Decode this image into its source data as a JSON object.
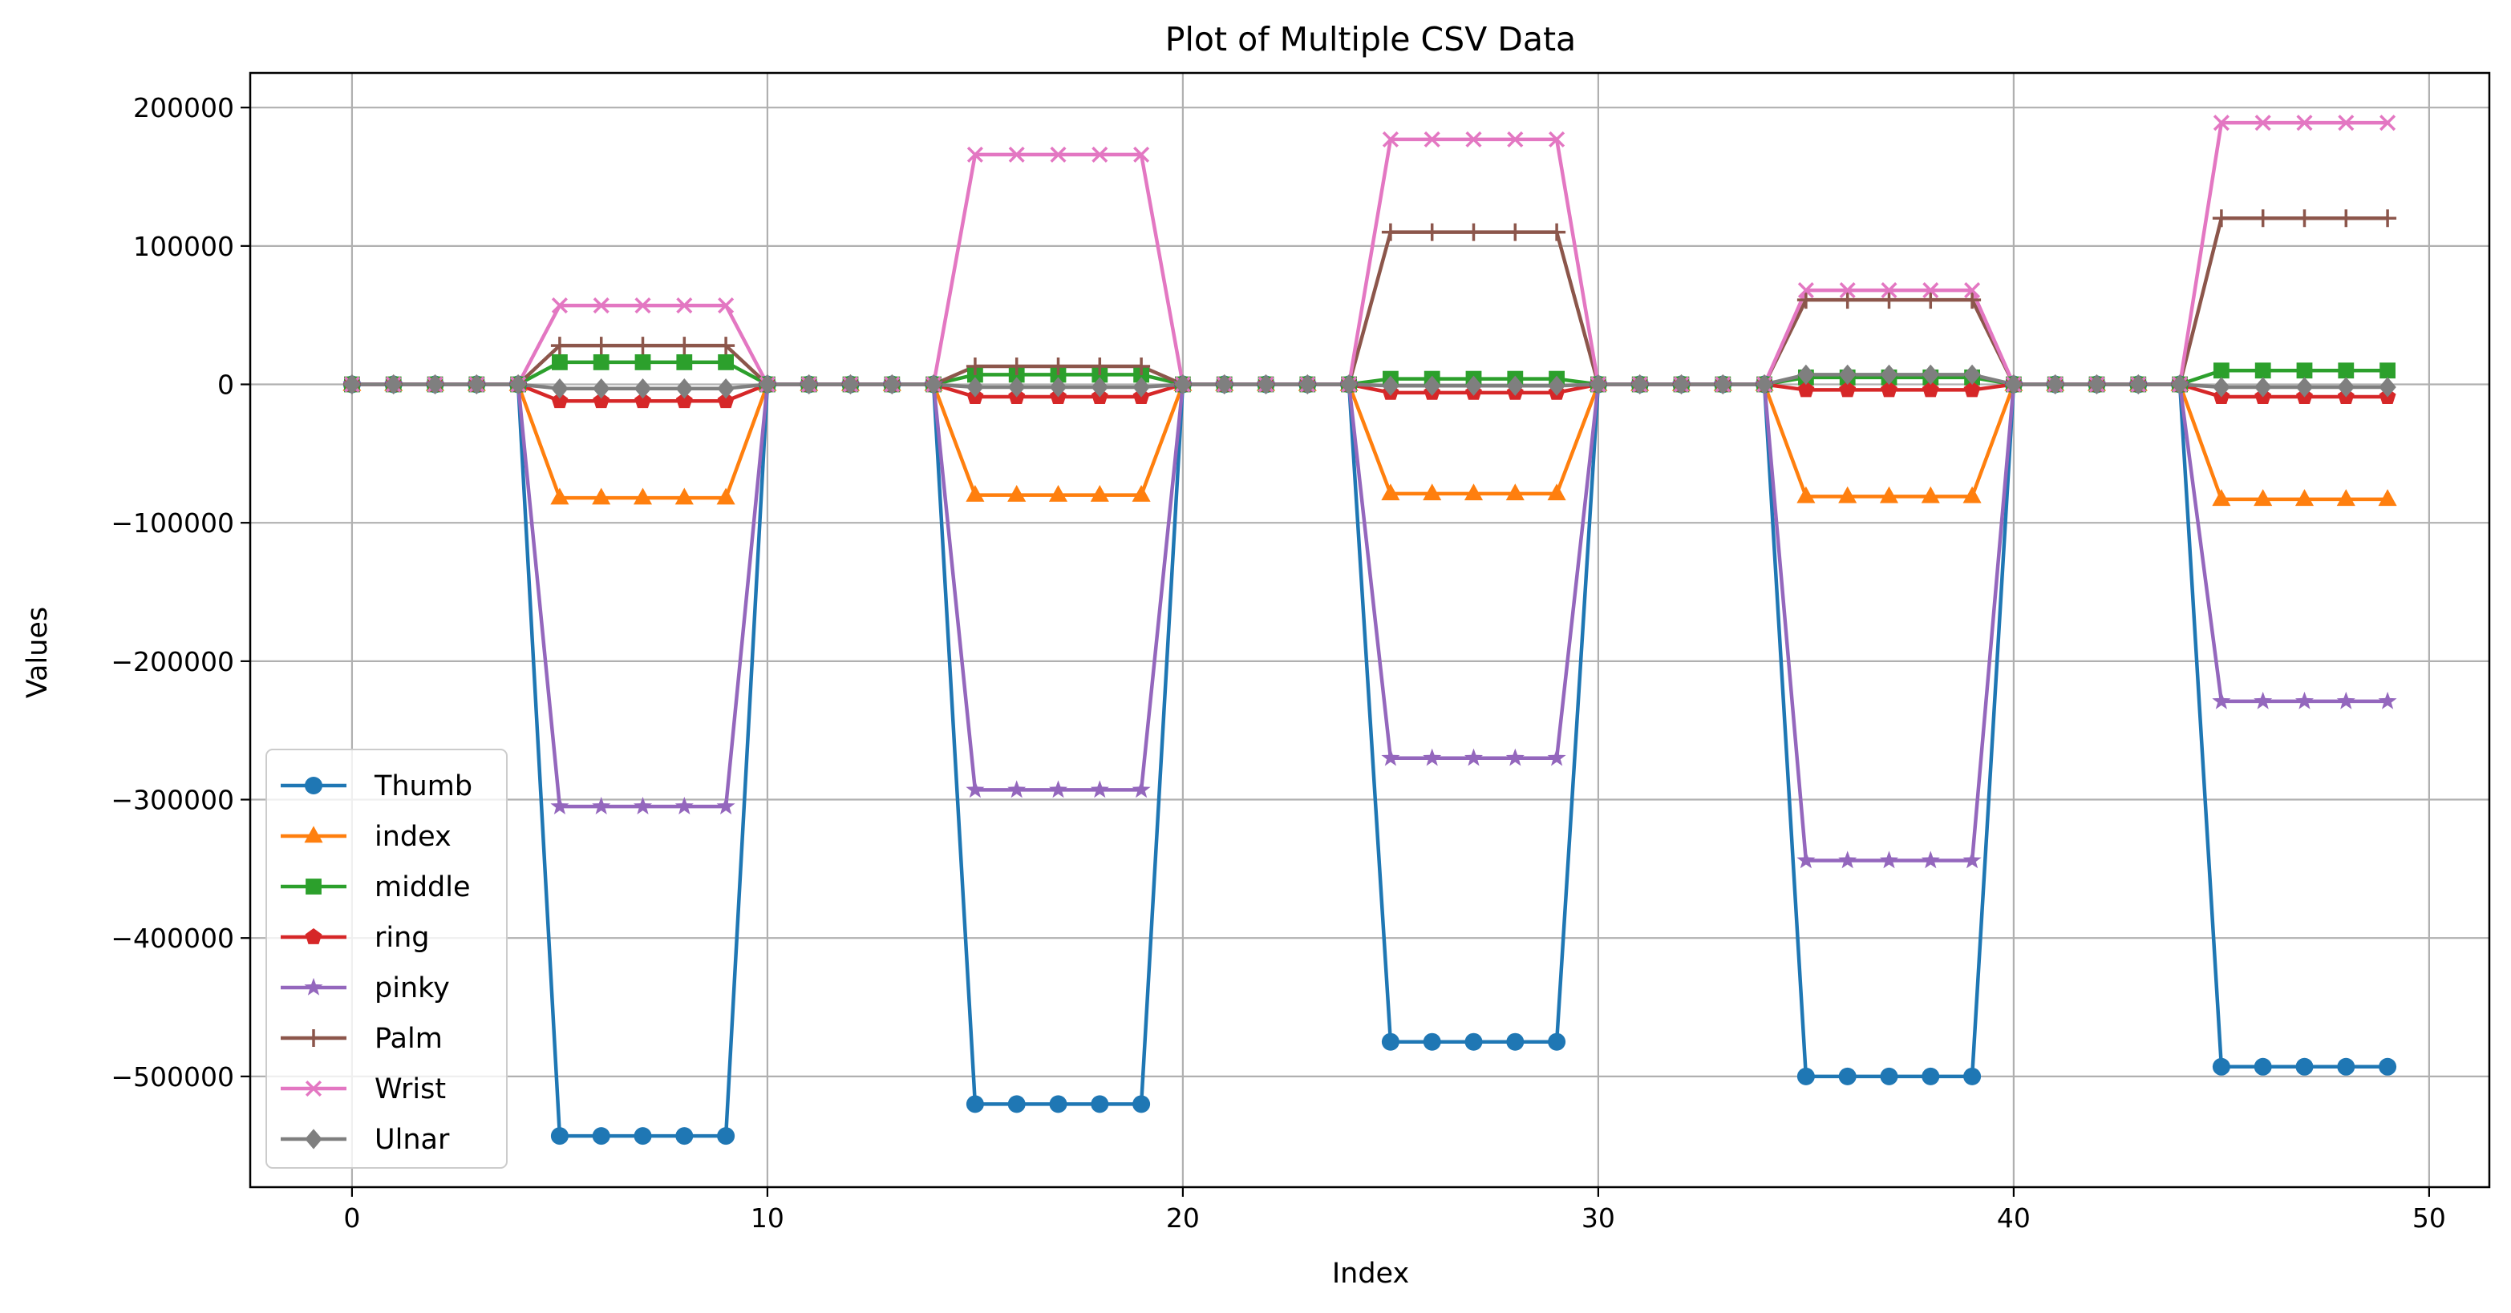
{
  "chart_data": {
    "type": "line",
    "title": "Plot of Multiple CSV Data",
    "xlabel": "Index",
    "ylabel": "Values",
    "xlim": [
      -2.45,
      51.45
    ],
    "ylim": [
      -580000,
      225000
    ],
    "xticks": [
      0,
      10,
      20,
      30,
      40,
      50
    ],
    "yticks": [
      200000,
      100000,
      0,
      -100000,
      -200000,
      -300000,
      -400000,
      -500000
    ],
    "ytick_labels": [
      "200000",
      "100000",
      "0",
      "−100000",
      "−200000",
      "−300000",
      "−400000",
      "−500000"
    ],
    "grid": true,
    "legend_position": "lower-left",
    "x": [
      0,
      1,
      2,
      3,
      4,
      5,
      6,
      7,
      8,
      9,
      10,
      11,
      12,
      13,
      14,
      15,
      16,
      17,
      18,
      19,
      20,
      21,
      22,
      23,
      24,
      25,
      26,
      27,
      28,
      29,
      30,
      31,
      32,
      33,
      34,
      35,
      36,
      37,
      38,
      39,
      40,
      41,
      42,
      43,
      44,
      45,
      46,
      47,
      48,
      49
    ],
    "series": [
      {
        "name": "Thumb",
        "color": "#1f77b4",
        "marker": "circle",
        "values": [
          0,
          0,
          0,
          0,
          0,
          -543000,
          -543000,
          -543000,
          -543000,
          -543000,
          0,
          0,
          0,
          0,
          0,
          -520000,
          -520000,
          -520000,
          -520000,
          -520000,
          0,
          0,
          0,
          0,
          0,
          -475000,
          -475000,
          -475000,
          -475000,
          -475000,
          0,
          0,
          0,
          0,
          0,
          -500000,
          -500000,
          -500000,
          -500000,
          -500000,
          0,
          0,
          0,
          0,
          0,
          -493000,
          -493000,
          -493000,
          -493000,
          -493000
        ]
      },
      {
        "name": "index",
        "color": "#ff7f0e",
        "marker": "triangle",
        "values": [
          0,
          0,
          0,
          0,
          0,
          -82000,
          -82000,
          -82000,
          -82000,
          -82000,
          0,
          0,
          0,
          0,
          0,
          -80000,
          -80000,
          -80000,
          -80000,
          -80000,
          0,
          0,
          0,
          0,
          0,
          -79000,
          -79000,
          -79000,
          -79000,
          -79000,
          0,
          0,
          0,
          0,
          0,
          -81000,
          -81000,
          -81000,
          -81000,
          -81000,
          0,
          0,
          0,
          0,
          0,
          -83000,
          -83000,
          -83000,
          -83000,
          -83000
        ]
      },
      {
        "name": "middle",
        "color": "#2ca02c",
        "marker": "square",
        "values": [
          0,
          0,
          0,
          0,
          0,
          16000,
          16000,
          16000,
          16000,
          16000,
          0,
          0,
          0,
          0,
          0,
          7000,
          7000,
          7000,
          7000,
          7000,
          0,
          0,
          0,
          0,
          0,
          4000,
          4000,
          4000,
          4000,
          4000,
          0,
          0,
          0,
          0,
          0,
          5000,
          5000,
          5000,
          5000,
          5000,
          0,
          0,
          0,
          0,
          0,
          10000,
          10000,
          10000,
          10000,
          10000
        ]
      },
      {
        "name": "ring",
        "color": "#d62728",
        "marker": "pentagon",
        "values": [
          0,
          0,
          0,
          0,
          0,
          -12000,
          -12000,
          -12000,
          -12000,
          -12000,
          0,
          0,
          0,
          0,
          0,
          -9000,
          -9000,
          -9000,
          -9000,
          -9000,
          0,
          0,
          0,
          0,
          0,
          -6000,
          -6000,
          -6000,
          -6000,
          -6000,
          0,
          0,
          0,
          0,
          0,
          -4000,
          -4000,
          -4000,
          -4000,
          -4000,
          0,
          0,
          0,
          0,
          0,
          -9000,
          -9000,
          -9000,
          -9000,
          -9000
        ]
      },
      {
        "name": "pinky",
        "color": "#9467bd",
        "marker": "star",
        "values": [
          0,
          0,
          0,
          0,
          0,
          -305000,
          -305000,
          -305000,
          -305000,
          -305000,
          0,
          0,
          0,
          0,
          0,
          -293000,
          -293000,
          -293000,
          -293000,
          -293000,
          0,
          0,
          0,
          0,
          0,
          -270000,
          -270000,
          -270000,
          -270000,
          -270000,
          0,
          0,
          0,
          0,
          0,
          -344000,
          -344000,
          -344000,
          -344000,
          -344000,
          0,
          0,
          0,
          0,
          0,
          -229000,
          -229000,
          -229000,
          -229000,
          -229000
        ]
      },
      {
        "name": "Palm",
        "color": "#8c564b",
        "marker": "plus",
        "values": [
          0,
          0,
          0,
          0,
          0,
          28000,
          28000,
          28000,
          28000,
          28000,
          0,
          0,
          0,
          0,
          0,
          13000,
          13000,
          13000,
          13000,
          13000,
          0,
          0,
          0,
          0,
          0,
          110000,
          110000,
          110000,
          110000,
          110000,
          0,
          0,
          0,
          0,
          0,
          61000,
          61000,
          61000,
          61000,
          61000,
          0,
          0,
          0,
          0,
          0,
          120000,
          120000,
          120000,
          120000,
          120000
        ]
      },
      {
        "name": "Wrist",
        "color": "#e377c2",
        "marker": "x",
        "values": [
          0,
          0,
          0,
          0,
          0,
          57000,
          57000,
          57000,
          57000,
          57000,
          0,
          0,
          0,
          0,
          0,
          166000,
          166000,
          166000,
          166000,
          166000,
          0,
          0,
          0,
          0,
          0,
          177000,
          177000,
          177000,
          177000,
          177000,
          0,
          0,
          0,
          0,
          0,
          68000,
          68000,
          68000,
          68000,
          68000,
          0,
          0,
          0,
          0,
          0,
          189000,
          189000,
          189000,
          189000,
          189000
        ]
      },
      {
        "name": "Ulnar",
        "color": "#7f7f7f",
        "marker": "diamond",
        "values": [
          0,
          0,
          0,
          0,
          0,
          -3000,
          -3000,
          -3000,
          -3000,
          -3000,
          0,
          0,
          0,
          0,
          0,
          -2000,
          -2000,
          -2000,
          -2000,
          -2000,
          0,
          0,
          0,
          0,
          0,
          -1000,
          -1000,
          -1000,
          -1000,
          -1000,
          0,
          0,
          0,
          0,
          0,
          7000,
          7000,
          7000,
          7000,
          7000,
          0,
          0,
          0,
          0,
          0,
          -2000,
          -2000,
          -2000,
          -2000,
          -2000
        ]
      }
    ]
  }
}
